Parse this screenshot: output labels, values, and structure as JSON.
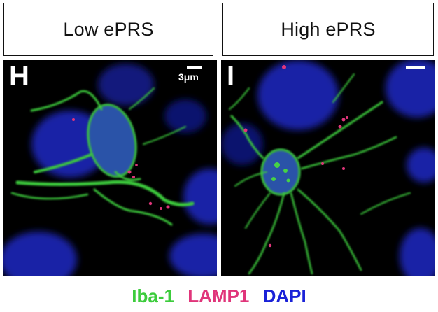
{
  "panels": [
    {
      "header": "Low ePRS",
      "letter": "H",
      "scale_label": "3μm"
    },
    {
      "header": "High ePRS",
      "letter": "I"
    }
  ],
  "legend": [
    {
      "label": "Iba-1",
      "color": "#3ccc3c"
    },
    {
      "label": "LAMP1",
      "color": "#e0357a"
    },
    {
      "label": "DAPI",
      "color": "#1a22d8"
    }
  ]
}
